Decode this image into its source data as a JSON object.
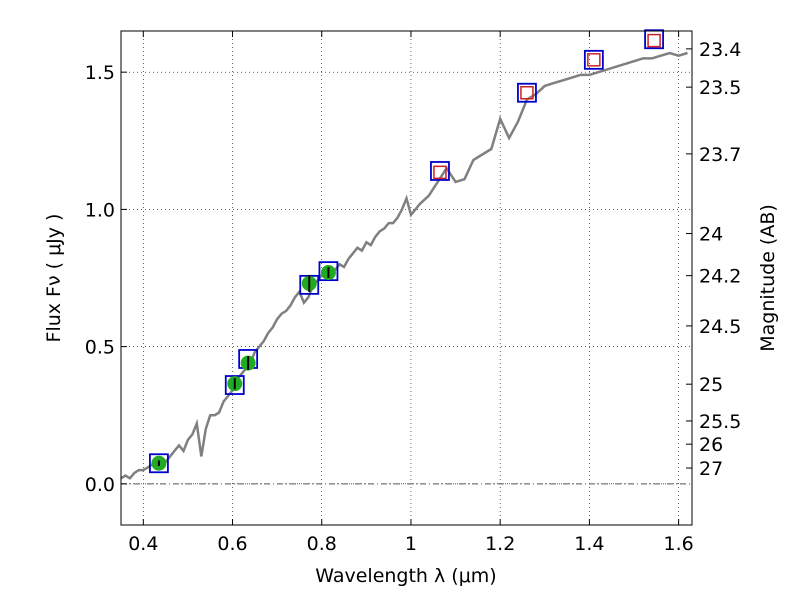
{
  "chart_data": {
    "type": "line",
    "xlabel": "Wavelength  λ (μm)",
    "ylabel": "Flux  Fν  ( μJy )",
    "y2label": "Magnitude (AB)",
    "xlim": [
      0.35,
      1.63
    ],
    "ylim": [
      -0.15,
      1.65
    ],
    "grid": true,
    "x_ticks": [
      0.4,
      0.6,
      0.8,
      1.0,
      1.2,
      1.4,
      1.6
    ],
    "x_tick_labels": [
      "0.4",
      "0.6",
      "0.8",
      "1",
      "1.2",
      "1.4",
      "1.6"
    ],
    "y_ticks": [
      0.0,
      0.5,
      1.0,
      1.5
    ],
    "y_tick_labels": [
      "0.0",
      "0.5",
      "1.0",
      "1.5"
    ],
    "magnitude_ticks": [
      23.4,
      23.5,
      23.7,
      24,
      24.2,
      24.5,
      25,
      25.5,
      26,
      27
    ],
    "magnitude_tick_labels": [
      "23.4",
      "23.5",
      "23.7",
      "24",
      "24.2",
      "24.5",
      "25",
      "25.5",
      "26",
      "27"
    ],
    "series": [
      {
        "kind": "model_sed",
        "color": "#808080",
        "x": [
          0.35,
          0.36,
          0.37,
          0.38,
          0.39,
          0.4,
          0.41,
          0.42,
          0.43,
          0.44,
          0.45,
          0.46,
          0.47,
          0.48,
          0.49,
          0.5,
          0.51,
          0.52,
          0.53,
          0.54,
          0.55,
          0.56,
          0.57,
          0.58,
          0.59,
          0.6,
          0.61,
          0.62,
          0.63,
          0.64,
          0.65,
          0.66,
          0.67,
          0.68,
          0.69,
          0.7,
          0.71,
          0.72,
          0.73,
          0.74,
          0.75,
          0.76,
          0.77,
          0.78,
          0.79,
          0.8,
          0.81,
          0.82,
          0.83,
          0.84,
          0.85,
          0.86,
          0.87,
          0.88,
          0.89,
          0.9,
          0.91,
          0.92,
          0.93,
          0.94,
          0.95,
          0.96,
          0.97,
          0.98,
          0.99,
          1.0,
          1.02,
          1.04,
          1.06,
          1.08,
          1.1,
          1.12,
          1.14,
          1.16,
          1.18,
          1.2,
          1.22,
          1.24,
          1.26,
          1.28,
          1.3,
          1.32,
          1.34,
          1.36,
          1.38,
          1.4,
          1.42,
          1.44,
          1.46,
          1.48,
          1.5,
          1.52,
          1.54,
          1.56,
          1.58,
          1.6,
          1.62
        ],
        "y": [
          0.02,
          0.03,
          0.02,
          0.04,
          0.05,
          0.05,
          0.06,
          0.07,
          0.08,
          0.09,
          0.08,
          0.1,
          0.12,
          0.14,
          0.12,
          0.16,
          0.18,
          0.22,
          0.1,
          0.2,
          0.25,
          0.25,
          0.26,
          0.3,
          0.32,
          0.34,
          0.38,
          0.4,
          0.42,
          0.44,
          0.48,
          0.5,
          0.52,
          0.55,
          0.57,
          0.6,
          0.62,
          0.63,
          0.65,
          0.68,
          0.7,
          0.66,
          0.68,
          0.72,
          0.74,
          0.76,
          0.75,
          0.77,
          0.78,
          0.8,
          0.79,
          0.82,
          0.84,
          0.86,
          0.85,
          0.88,
          0.87,
          0.9,
          0.92,
          0.93,
          0.95,
          0.95,
          0.97,
          1.0,
          1.04,
          0.98,
          1.02,
          1.05,
          1.1,
          1.15,
          1.1,
          1.11,
          1.18,
          1.2,
          1.22,
          1.33,
          1.26,
          1.32,
          1.4,
          1.42,
          1.45,
          1.46,
          1.47,
          1.48,
          1.49,
          1.49,
          1.5,
          1.51,
          1.52,
          1.53,
          1.54,
          1.55,
          1.55,
          1.56,
          1.57,
          1.56,
          1.57
        ]
      },
      {
        "kind": "model_band_flux",
        "marker": "blue_square",
        "color": "#0000cc",
        "x": [
          0.435,
          0.605,
          0.635,
          0.772,
          0.815,
          1.065,
          1.26,
          1.41,
          1.545
        ],
        "y": [
          0.075,
          0.36,
          0.455,
          0.725,
          0.775,
          1.14,
          1.425,
          1.545,
          1.62
        ]
      },
      {
        "kind": "observed_photometry",
        "marker": "green_circle",
        "color": "#22aa22",
        "x": [
          0.435,
          0.605,
          0.635,
          0.772,
          0.815
        ],
        "y": [
          0.075,
          0.365,
          0.44,
          0.73,
          0.77
        ],
        "yerr": [
          0.01,
          0.02,
          0.025,
          0.03,
          0.02
        ]
      },
      {
        "kind": "upper_limit",
        "marker": "red_square",
        "color": "#cc2222",
        "x": [
          1.065,
          1.26,
          1.41,
          1.545
        ],
        "y": [
          1.135,
          1.425,
          1.545,
          1.615
        ]
      }
    ]
  }
}
